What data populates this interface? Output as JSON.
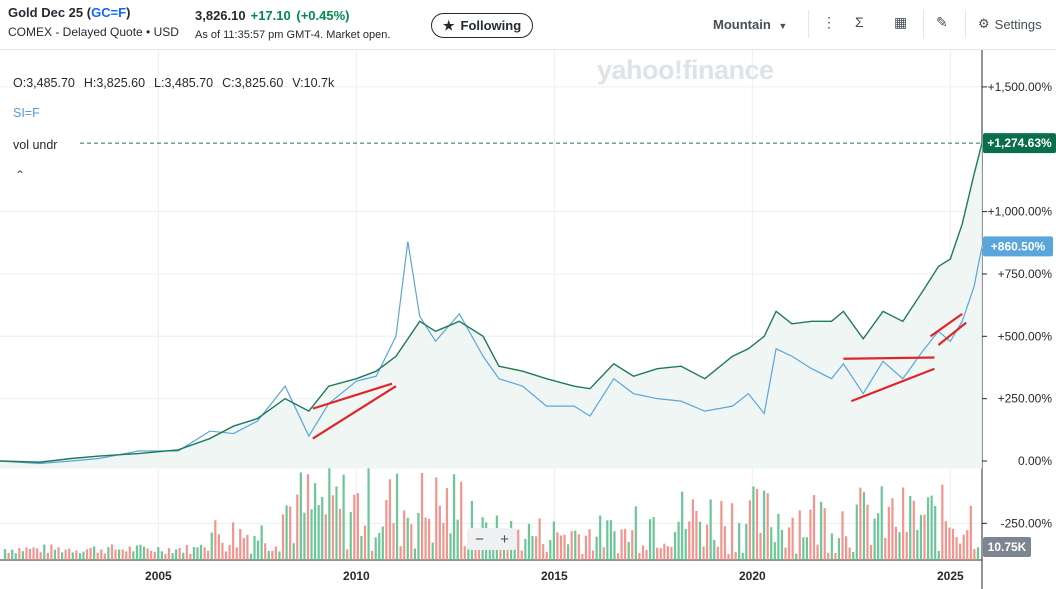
{
  "header": {
    "name": "Gold Dec 25",
    "ticker": "GC=F",
    "exchange": "COMEX - Delayed Quote • USD",
    "price": "3,826.10",
    "change": "+17.10",
    "change_pct": "(+0.45%)",
    "as_of": "As of 11:35:57 pm GMT-4. Market open.",
    "follow_label": "Following",
    "timezone": "Mountain",
    "settings_label": "Settings"
  },
  "legend": {
    "ohlc": [
      "O:3,485.70",
      "H:3,825.60",
      "L:3,485.70",
      "C:3,825.60",
      "V:10.7k"
    ],
    "compare": "SI=F",
    "indicator": "vol undr"
  },
  "watermark": "yahoo!finance",
  "zoom": {
    "minus": "−",
    "plus": "+"
  },
  "colors": {
    "gold": "#1f7a5a",
    "silver": "#5aa6dc",
    "up": "#5cc08c",
    "down": "#f08a82",
    "trend": "#e0262c",
    "badge": "#0a6e4a",
    "badge2": "#5aa6dc",
    "volbadge": "#7b8691"
  },
  "chart_data": {
    "type": "line",
    "x_ticks": [
      "2005",
      "2010",
      "2015",
      "2020",
      "2025"
    ],
    "y_ticks": [
      "+1,500.00%",
      "+1,000.00%",
      "+750.00%",
      "+500.00%",
      "+250.00%",
      "0.00%",
      "-250.00%"
    ],
    "ylim": [
      -350,
      1600
    ],
    "xlim": [
      2001.0,
      2025.8
    ],
    "last_gold_label": "+1,274.63%",
    "last_silver_label": "+860.50%",
    "volume_label": "10.75K",
    "series": [
      {
        "name": "GC=F",
        "values": [
          [
            2001.0,
            0
          ],
          [
            2002.0,
            -5
          ],
          [
            2002.8,
            10
          ],
          [
            2003.5,
            20
          ],
          [
            2004.5,
            30
          ],
          [
            2005.5,
            45
          ],
          [
            2006.3,
            90
          ],
          [
            2006.9,
            140
          ],
          [
            2007.5,
            170
          ],
          [
            2008.2,
            250
          ],
          [
            2008.8,
            200
          ],
          [
            2009.3,
            300
          ],
          [
            2010.0,
            330
          ],
          [
            2010.5,
            360
          ],
          [
            2011.0,
            420
          ],
          [
            2011.6,
            560
          ],
          [
            2012.0,
            520
          ],
          [
            2012.6,
            560
          ],
          [
            2013.2,
            500
          ],
          [
            2013.6,
            380
          ],
          [
            2014.2,
            360
          ],
          [
            2014.8,
            330
          ],
          [
            2015.5,
            300
          ],
          [
            2015.9,
            290
          ],
          [
            2016.5,
            390
          ],
          [
            2017.0,
            340
          ],
          [
            2017.6,
            370
          ],
          [
            2018.2,
            380
          ],
          [
            2018.8,
            330
          ],
          [
            2019.5,
            420
          ],
          [
            2019.9,
            450
          ],
          [
            2020.3,
            500
          ],
          [
            2020.6,
            600
          ],
          [
            2021.0,
            550
          ],
          [
            2021.5,
            560
          ],
          [
            2022.0,
            560
          ],
          [
            2022.3,
            600
          ],
          [
            2022.8,
            490
          ],
          [
            2023.3,
            600
          ],
          [
            2023.8,
            560
          ],
          [
            2024.3,
            680
          ],
          [
            2024.7,
            780
          ],
          [
            2025.0,
            810
          ],
          [
            2025.3,
            950
          ],
          [
            2025.6,
            1150
          ],
          [
            2025.8,
            1274.63
          ]
        ]
      },
      {
        "name": "SI=F",
        "values": [
          [
            2001.0,
            0
          ],
          [
            2002.0,
            -10
          ],
          [
            2002.8,
            0
          ],
          [
            2003.5,
            10
          ],
          [
            2004.5,
            40
          ],
          [
            2005.5,
            40
          ],
          [
            2006.3,
            120
          ],
          [
            2006.9,
            110
          ],
          [
            2007.5,
            160
          ],
          [
            2008.2,
            300
          ],
          [
            2008.8,
            100
          ],
          [
            2009.3,
            230
          ],
          [
            2010.0,
            320
          ],
          [
            2010.5,
            340
          ],
          [
            2011.0,
            500
          ],
          [
            2011.3,
            880
          ],
          [
            2011.6,
            580
          ],
          [
            2012.0,
            480
          ],
          [
            2012.6,
            590
          ],
          [
            2013.2,
            420
          ],
          [
            2013.6,
            330
          ],
          [
            2014.2,
            300
          ],
          [
            2014.8,
            220
          ],
          [
            2015.5,
            220
          ],
          [
            2015.9,
            180
          ],
          [
            2016.5,
            330
          ],
          [
            2017.0,
            270
          ],
          [
            2017.6,
            250
          ],
          [
            2018.2,
            240
          ],
          [
            2018.8,
            200
          ],
          [
            2019.5,
            220
          ],
          [
            2019.9,
            270
          ],
          [
            2020.3,
            190
          ],
          [
            2020.6,
            450
          ],
          [
            2021.0,
            420
          ],
          [
            2021.5,
            370
          ],
          [
            2022.0,
            330
          ],
          [
            2022.3,
            390
          ],
          [
            2022.8,
            270
          ],
          [
            2023.3,
            400
          ],
          [
            2023.8,
            330
          ],
          [
            2024.3,
            440
          ],
          [
            2024.7,
            520
          ],
          [
            2025.0,
            480
          ],
          [
            2025.3,
            560
          ],
          [
            2025.6,
            700
          ],
          [
            2025.8,
            860.5
          ]
        ]
      }
    ],
    "trendlines": [
      [
        [
          2008.9,
          90
        ],
        [
          2011.0,
          300
        ]
      ],
      [
        [
          2008.9,
          210
        ],
        [
          2010.9,
          310
        ]
      ],
      [
        [
          2022.3,
          410
        ],
        [
          2024.6,
          415
        ]
      ],
      [
        [
          2022.5,
          240
        ],
        [
          2024.6,
          370
        ]
      ],
      [
        [
          2024.5,
          500
        ],
        [
          2025.3,
          590
        ]
      ],
      [
        [
          2024.7,
          465
        ],
        [
          2025.4,
          555
        ]
      ]
    ]
  }
}
